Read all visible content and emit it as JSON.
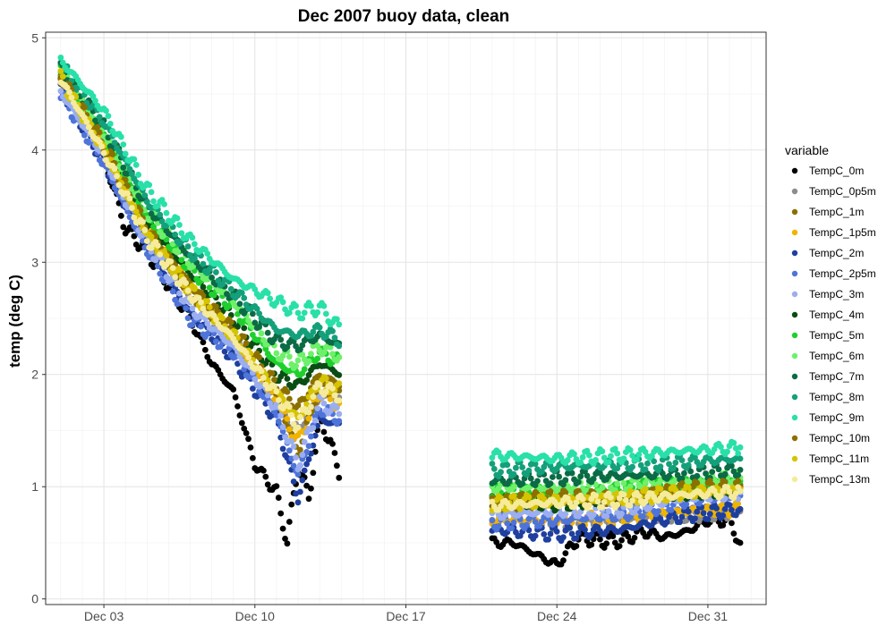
{
  "chart_data": {
    "type": "scatter",
    "title": "Dec 2007 buoy data, clean",
    "xlabel": "",
    "ylabel": "temp (deg C)",
    "ylim": [
      -0.05,
      5.05
    ],
    "xlim_days": [
      0.3,
      33.7
    ],
    "x_ticks": [
      {
        "label": "Dec 03",
        "day": 3
      },
      {
        "label": "Dec 10",
        "day": 10
      },
      {
        "label": "Dec 17",
        "day": 17
      },
      {
        "label": "Dec 24",
        "day": 24
      },
      {
        "label": "Dec 31",
        "day": 31
      }
    ],
    "y_ticks": [
      0,
      1,
      2,
      3,
      4,
      5
    ],
    "grid": true,
    "legend": {
      "title": "variable",
      "position": "right"
    },
    "series": [
      {
        "name": "TempC_0m",
        "color": "#000000",
        "x": [
          1.0,
          2.0,
          3.0,
          4.0,
          5.0,
          6.0,
          7.0,
          8.0,
          9.0,
          10.0,
          11.0,
          11.5,
          12.0,
          12.5,
          13.0,
          13.5,
          14.0,
          21.0,
          22.0,
          23.0,
          24.0,
          25.0,
          26.0,
          27.0,
          28.0,
          29.0,
          30.0,
          31.0,
          32.0,
          32.5
        ],
        "y": [
          4.65,
          4.3,
          3.95,
          3.3,
          3.1,
          2.8,
          2.5,
          2.1,
          1.85,
          1.2,
          0.95,
          0.5,
          1.2,
          0.9,
          1.6,
          1.4,
          1.05,
          0.5,
          0.5,
          0.4,
          0.3,
          0.55,
          0.52,
          0.52,
          0.6,
          0.55,
          0.6,
          0.7,
          0.7,
          0.5
        ]
      },
      {
        "name": "TempC_0p5m",
        "color": "#8c8c8c",
        "x": [
          1.0,
          3.0,
          5.0,
          7.0,
          9.0,
          11.0,
          12.0,
          13.0,
          14.0,
          21.0,
          24.0,
          27.0,
          30.0,
          32.5
        ],
        "y": [
          4.62,
          4.0,
          3.2,
          2.7,
          2.3,
          1.7,
          1.5,
          1.8,
          1.8,
          0.7,
          0.68,
          0.7,
          0.75,
          0.78
        ]
      },
      {
        "name": "TempC_1m",
        "color": "#8b7000",
        "x": [
          1.0,
          3.0,
          5.0,
          7.0,
          9.0,
          11.0,
          12.0,
          13.0,
          14.0,
          21.0,
          24.0,
          27.0,
          30.0,
          32.5
        ],
        "y": [
          4.65,
          4.02,
          3.25,
          2.75,
          2.35,
          1.8,
          1.3,
          1.9,
          1.85,
          0.82,
          0.88,
          0.88,
          0.98,
          1.02
        ]
      },
      {
        "name": "TempC_1p5m",
        "color": "#f0b400",
        "x": [
          1.0,
          3.0,
          5.0,
          7.0,
          9.0,
          11.0,
          12.0,
          13.0,
          14.0,
          21.0,
          24.0,
          27.0,
          30.0,
          32.5
        ],
        "y": [
          4.64,
          4.05,
          3.28,
          2.78,
          2.3,
          1.75,
          1.4,
          1.85,
          1.7,
          0.7,
          0.7,
          0.72,
          0.78,
          0.8
        ]
      },
      {
        "name": "TempC_2m",
        "color": "#1e3f9e",
        "x": [
          1.0,
          3.0,
          5.0,
          7.0,
          9.0,
          11.0,
          12.0,
          13.0,
          14.0,
          21.0,
          24.0,
          27.0,
          30.0,
          32.5
        ],
        "y": [
          4.55,
          3.9,
          3.15,
          2.55,
          2.15,
          1.6,
          0.9,
          1.6,
          1.55,
          0.62,
          0.58,
          0.62,
          0.75,
          0.8
        ]
      },
      {
        "name": "TempC_2p5m",
        "color": "#4f74d9",
        "x": [
          1.0,
          3.0,
          5.0,
          7.0,
          9.0,
          11.0,
          12.0,
          13.0,
          14.0,
          21.0,
          24.0,
          27.0,
          30.0,
          32.5
        ],
        "y": [
          4.5,
          3.88,
          3.1,
          2.5,
          2.2,
          1.65,
          1.1,
          1.7,
          1.6,
          0.68,
          0.7,
          0.75,
          0.88,
          0.92
        ]
      },
      {
        "name": "TempC_3m",
        "color": "#9aaef0",
        "x": [
          1.0,
          3.0,
          5.0,
          7.0,
          9.0,
          11.0,
          12.0,
          13.0,
          14.0,
          21.0,
          24.0,
          27.0,
          30.0,
          32.5
        ],
        "y": [
          4.52,
          3.95,
          3.18,
          2.6,
          2.25,
          1.7,
          1.2,
          1.75,
          1.65,
          0.75,
          0.78,
          0.8,
          0.9,
          0.95
        ]
      },
      {
        "name": "TempC_4m",
        "color": "#0a4d14",
        "x": [
          1.0,
          3.0,
          5.0,
          7.0,
          9.0,
          11.0,
          12.0,
          13.0,
          14.0,
          21.0,
          24.0,
          27.0,
          30.0,
          32.5
        ],
        "y": [
          4.68,
          4.1,
          3.35,
          2.9,
          2.5,
          2.0,
          1.9,
          2.1,
          2.0,
          0.9,
          0.85,
          0.9,
          0.95,
          1.0
        ]
      },
      {
        "name": "TempC_5m",
        "color": "#1ed02d",
        "x": [
          1.0,
          3.0,
          5.0,
          7.0,
          9.0,
          11.0,
          12.0,
          13.0,
          14.0,
          21.0,
          24.0,
          27.0,
          30.0,
          32.5
        ],
        "y": [
          4.7,
          4.12,
          3.4,
          2.95,
          2.6,
          2.1,
          2.0,
          2.2,
          2.1,
          0.95,
          0.95,
          0.98,
          1.02,
          1.05
        ]
      },
      {
        "name": "TempC_6m",
        "color": "#6ef06a",
        "x": [
          1.0,
          3.0,
          5.0,
          7.0,
          9.0,
          11.0,
          12.0,
          13.0,
          14.0,
          21.0,
          24.0,
          27.0,
          30.0,
          32.5
        ],
        "y": [
          4.72,
          4.15,
          3.45,
          3.0,
          2.65,
          2.2,
          2.1,
          2.25,
          2.15,
          1.0,
          1.0,
          1.02,
          1.06,
          1.08
        ]
      },
      {
        "name": "TempC_7m",
        "color": "#0a6b45",
        "x": [
          1.0,
          3.0,
          5.0,
          7.0,
          9.0,
          11.0,
          12.0,
          13.0,
          14.0,
          21.0,
          24.0,
          27.0,
          30.0,
          32.5
        ],
        "y": [
          4.74,
          4.2,
          3.5,
          3.05,
          2.7,
          2.3,
          2.25,
          2.35,
          2.25,
          1.05,
          1.08,
          1.1,
          1.12,
          1.15
        ]
      },
      {
        "name": "TempC_8m",
        "color": "#13a07a",
        "x": [
          1.0,
          3.0,
          5.0,
          7.0,
          9.0,
          11.0,
          12.0,
          13.0,
          14.0,
          21.0,
          24.0,
          27.0,
          30.0,
          32.5
        ],
        "y": [
          4.76,
          4.25,
          3.55,
          3.1,
          2.75,
          2.4,
          2.35,
          2.4,
          2.3,
          1.15,
          1.18,
          1.2,
          1.22,
          1.25
        ]
      },
      {
        "name": "TempC_9m",
        "color": "#28e0a8",
        "x": [
          1.0,
          3.0,
          5.0,
          7.0,
          9.0,
          11.0,
          12.0,
          13.0,
          14.0,
          21.0,
          24.0,
          27.0,
          30.0,
          32.5
        ],
        "y": [
          4.8,
          4.35,
          3.65,
          3.2,
          2.85,
          2.65,
          2.55,
          2.6,
          2.4,
          1.28,
          1.25,
          1.28,
          1.32,
          1.35
        ]
      },
      {
        "name": "TempC_10m",
        "color": "#8b7000",
        "x": [
          1.0,
          3.0,
          5.0,
          7.0,
          9.0,
          11.0,
          12.0,
          13.0,
          14.0,
          21.0,
          24.0,
          27.0,
          30.0,
          32.5
        ],
        "y": [
          4.66,
          4.05,
          3.3,
          2.8,
          2.4,
          1.9,
          1.7,
          2.0,
          1.9,
          0.88,
          0.9,
          0.92,
          0.98,
          1.0
        ]
      },
      {
        "name": "TempC_11m",
        "color": "#d6c400",
        "x": [
          1.0,
          3.0,
          5.0,
          7.0,
          9.0,
          11.0,
          12.0,
          13.0,
          14.0,
          21.0,
          24.0,
          27.0,
          30.0,
          32.5
        ],
        "y": [
          4.64,
          4.0,
          3.25,
          2.75,
          2.35,
          1.85,
          1.6,
          1.95,
          1.85,
          0.85,
          0.88,
          0.9,
          0.95,
          0.98
        ]
      },
      {
        "name": "TempC_13m",
        "color": "#f5eb9a",
        "x": [
          1.0,
          3.0,
          5.0,
          7.0,
          9.0,
          11.0,
          12.0,
          13.0,
          14.0,
          21.0,
          24.0,
          27.0,
          30.0,
          32.5
        ],
        "y": [
          4.63,
          3.98,
          3.22,
          2.72,
          2.32,
          1.82,
          1.55,
          1.9,
          1.8,
          0.83,
          0.86,
          0.88,
          0.93,
          0.96
        ]
      }
    ]
  }
}
